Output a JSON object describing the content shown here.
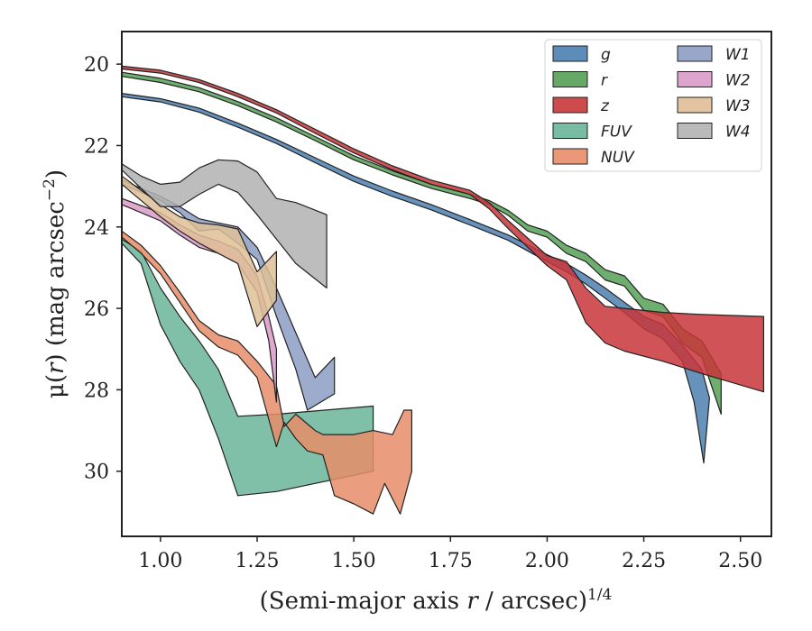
{
  "chart_data": {
    "type": "area",
    "title": "",
    "x_scale": "linear",
    "y_inverted": true,
    "xlim": [
      0.9,
      2.58
    ],
    "ylim": [
      31.6,
      19.2
    ],
    "xticks": [
      1.0,
      1.25,
      1.5,
      1.75,
      2.0,
      2.25,
      2.5
    ],
    "xtick_labels": [
      "1.00",
      "1.25",
      "1.50",
      "1.75",
      "2.00",
      "2.25",
      "2.50"
    ],
    "yticks": [
      20,
      22,
      24,
      26,
      28,
      30
    ],
    "ytick_labels": [
      "20",
      "22",
      "24",
      "26",
      "28",
      "30"
    ],
    "xlabel": {
      "pre": "(Semi-major axis ",
      "var": "r",
      "post": " / arcsec)",
      "sup": "1/4"
    },
    "ylabel": {
      "pre": "μ(",
      "var": "r",
      "post": ") (mag arcsec",
      "sup": "−2",
      "end": ")"
    },
    "legend_position": "top-right",
    "legend_columns": 2,
    "series": [
      {
        "name": "g",
        "color": "#4c7fb0",
        "upper": [
          [
            0.9,
            20.72
          ],
          [
            1.0,
            20.85
          ],
          [
            1.1,
            21.08
          ],
          [
            1.2,
            21.45
          ],
          [
            1.3,
            21.85
          ],
          [
            1.4,
            22.3
          ],
          [
            1.5,
            22.75
          ],
          [
            1.6,
            23.12
          ],
          [
            1.7,
            23.45
          ],
          [
            1.8,
            23.82
          ],
          [
            1.9,
            24.2
          ],
          [
            2.0,
            24.68
          ],
          [
            2.05,
            24.9
          ],
          [
            2.1,
            25.18
          ],
          [
            2.15,
            25.5
          ],
          [
            2.2,
            25.85
          ],
          [
            2.25,
            26.2
          ],
          [
            2.3,
            26.4
          ],
          [
            2.35,
            26.9
          ],
          [
            2.4,
            27.5
          ],
          [
            2.42,
            28.2
          ]
        ],
        "lower": [
          [
            0.9,
            20.8
          ],
          [
            1.0,
            20.93
          ],
          [
            1.1,
            21.18
          ],
          [
            1.2,
            21.55
          ],
          [
            1.3,
            21.95
          ],
          [
            1.4,
            22.42
          ],
          [
            1.5,
            22.88
          ],
          [
            1.6,
            23.25
          ],
          [
            1.7,
            23.58
          ],
          [
            1.8,
            23.95
          ],
          [
            1.9,
            24.33
          ],
          [
            2.0,
            24.85
          ],
          [
            2.05,
            25.1
          ],
          [
            2.1,
            25.4
          ],
          [
            2.15,
            25.75
          ],
          [
            2.2,
            26.1
          ],
          [
            2.25,
            26.5
          ],
          [
            2.3,
            26.75
          ],
          [
            2.35,
            27.3
          ],
          [
            2.38,
            28.3
          ],
          [
            2.405,
            29.8
          ]
        ]
      },
      {
        "name": "r",
        "color": "#55a055",
        "upper": [
          [
            0.9,
            20.2
          ],
          [
            1.0,
            20.35
          ],
          [
            1.1,
            20.58
          ],
          [
            1.2,
            20.92
          ],
          [
            1.3,
            21.32
          ],
          [
            1.4,
            21.78
          ],
          [
            1.5,
            22.25
          ],
          [
            1.6,
            22.62
          ],
          [
            1.7,
            22.95
          ],
          [
            1.8,
            23.2
          ],
          [
            1.85,
            23.35
          ],
          [
            1.9,
            23.6
          ],
          [
            1.95,
            23.95
          ],
          [
            2.0,
            24.1
          ],
          [
            2.05,
            24.45
          ],
          [
            2.1,
            24.65
          ],
          [
            2.15,
            25.05
          ],
          [
            2.2,
            25.2
          ],
          [
            2.25,
            25.75
          ],
          [
            2.3,
            25.9
          ],
          [
            2.35,
            26.5
          ],
          [
            2.4,
            26.8
          ],
          [
            2.45,
            27.6
          ]
        ],
        "lower": [
          [
            0.9,
            20.3
          ],
          [
            1.0,
            20.45
          ],
          [
            1.1,
            20.68
          ],
          [
            1.2,
            21.02
          ],
          [
            1.3,
            21.42
          ],
          [
            1.4,
            21.88
          ],
          [
            1.5,
            22.35
          ],
          [
            1.6,
            22.72
          ],
          [
            1.7,
            23.05
          ],
          [
            1.8,
            23.3
          ],
          [
            1.85,
            23.45
          ],
          [
            1.9,
            23.72
          ],
          [
            1.95,
            24.1
          ],
          [
            2.0,
            24.25
          ],
          [
            2.05,
            24.65
          ],
          [
            2.1,
            24.85
          ],
          [
            2.15,
            25.3
          ],
          [
            2.2,
            25.45
          ],
          [
            2.25,
            26.05
          ],
          [
            2.3,
            26.2
          ],
          [
            2.35,
            26.85
          ],
          [
            2.4,
            27.2
          ],
          [
            2.45,
            28.6
          ]
        ]
      },
      {
        "name": "z",
        "color": "#c8363a",
        "upper": [
          [
            0.9,
            20.05
          ],
          [
            1.0,
            20.15
          ],
          [
            1.1,
            20.38
          ],
          [
            1.2,
            20.72
          ],
          [
            1.3,
            21.12
          ],
          [
            1.4,
            21.6
          ],
          [
            1.5,
            22.08
          ],
          [
            1.6,
            22.5
          ],
          [
            1.7,
            22.85
          ],
          [
            1.8,
            23.1
          ],
          [
            1.85,
            23.4
          ],
          [
            1.9,
            23.85
          ],
          [
            2.0,
            24.7
          ],
          [
            2.05,
            24.85
          ],
          [
            2.1,
            25.5
          ],
          [
            2.15,
            25.95
          ],
          [
            2.2,
            26.0
          ],
          [
            2.3,
            26.1
          ],
          [
            2.4,
            26.15
          ],
          [
            2.56,
            26.2
          ]
        ],
        "lower": [
          [
            0.9,
            20.12
          ],
          [
            1.0,
            20.22
          ],
          [
            1.1,
            20.45
          ],
          [
            1.2,
            20.8
          ],
          [
            1.3,
            21.2
          ],
          [
            1.4,
            21.7
          ],
          [
            1.5,
            22.18
          ],
          [
            1.6,
            22.6
          ],
          [
            1.7,
            22.95
          ],
          [
            1.8,
            23.2
          ],
          [
            1.85,
            23.55
          ],
          [
            1.9,
            24.05
          ],
          [
            2.0,
            24.95
          ],
          [
            2.05,
            25.3
          ],
          [
            2.1,
            26.35
          ],
          [
            2.15,
            26.85
          ],
          [
            2.2,
            27.05
          ],
          [
            2.3,
            27.3
          ],
          [
            2.4,
            27.6
          ],
          [
            2.56,
            28.05
          ]
        ]
      },
      {
        "name": "FUV",
        "color": "#6ab59a",
        "upper": [
          [
            0.9,
            24.3
          ],
          [
            0.95,
            24.6
          ],
          [
            1.0,
            25.5
          ],
          [
            1.05,
            26.2
          ],
          [
            1.1,
            26.8
          ],
          [
            1.15,
            27.5
          ],
          [
            1.2,
            28.65
          ],
          [
            1.3,
            28.6
          ],
          [
            1.55,
            28.4
          ]
        ],
        "lower": [
          [
            0.9,
            24.4
          ],
          [
            0.95,
            24.9
          ],
          [
            1.0,
            26.4
          ],
          [
            1.05,
            27.3
          ],
          [
            1.1,
            28.0
          ],
          [
            1.15,
            29.2
          ],
          [
            1.2,
            30.6
          ],
          [
            1.3,
            30.5
          ],
          [
            1.55,
            30.0
          ]
        ]
      },
      {
        "name": "NUV",
        "color": "#e88d68",
        "upper": [
          [
            0.9,
            24.1
          ],
          [
            0.95,
            24.45
          ],
          [
            1.0,
            24.95
          ],
          [
            1.05,
            25.6
          ],
          [
            1.1,
            26.3
          ],
          [
            1.15,
            26.65
          ],
          [
            1.2,
            26.8
          ],
          [
            1.25,
            27.3
          ],
          [
            1.3,
            27.9
          ],
          [
            1.32,
            28.9
          ],
          [
            1.35,
            28.6
          ],
          [
            1.4,
            29.0
          ],
          [
            1.42,
            29.1
          ],
          [
            1.5,
            29.1
          ],
          [
            1.55,
            29.0
          ],
          [
            1.6,
            29.1
          ],
          [
            1.63,
            28.5
          ],
          [
            1.65,
            28.5
          ]
        ],
        "lower": [
          [
            0.9,
            24.25
          ],
          [
            0.95,
            24.65
          ],
          [
            1.0,
            25.15
          ],
          [
            1.05,
            25.85
          ],
          [
            1.1,
            26.55
          ],
          [
            1.15,
            26.95
          ],
          [
            1.2,
            27.15
          ],
          [
            1.25,
            27.7
          ],
          [
            1.3,
            29.4
          ],
          [
            1.32,
            28.8
          ],
          [
            1.35,
            29.2
          ],
          [
            1.38,
            29.5
          ],
          [
            1.42,
            29.6
          ],
          [
            1.45,
            30.6
          ],
          [
            1.5,
            30.8
          ],
          [
            1.55,
            31.05
          ],
          [
            1.58,
            30.3
          ],
          [
            1.62,
            31.05
          ],
          [
            1.65,
            30.0
          ]
        ]
      },
      {
        "name": "W1",
        "color": "#8c9cc3",
        "upper": [
          [
            0.9,
            22.85
          ],
          [
            1.0,
            23.25
          ],
          [
            1.05,
            23.5
          ],
          [
            1.1,
            23.8
          ],
          [
            1.15,
            23.9
          ],
          [
            1.2,
            24.0
          ],
          [
            1.25,
            24.5
          ],
          [
            1.3,
            25.5
          ],
          [
            1.35,
            26.6
          ],
          [
            1.4,
            27.7
          ],
          [
            1.45,
            27.2
          ]
        ],
        "lower": [
          [
            0.9,
            22.95
          ],
          [
            1.0,
            23.35
          ],
          [
            1.05,
            23.65
          ],
          [
            1.1,
            24.1
          ],
          [
            1.15,
            24.05
          ],
          [
            1.2,
            24.4
          ],
          [
            1.25,
            24.8
          ],
          [
            1.3,
            26.2
          ],
          [
            1.35,
            27.5
          ],
          [
            1.38,
            28.5
          ],
          [
            1.45,
            28.1
          ]
        ]
      },
      {
        "name": "W2",
        "color": "#d99ac8",
        "upper": [
          [
            0.9,
            23.3
          ],
          [
            1.0,
            23.65
          ],
          [
            1.05,
            23.95
          ],
          [
            1.1,
            24.2
          ],
          [
            1.15,
            24.35
          ],
          [
            1.2,
            24.55
          ],
          [
            1.25,
            25.2
          ],
          [
            1.28,
            26.2
          ],
          [
            1.3,
            27.0
          ]
        ],
        "lower": [
          [
            0.9,
            23.45
          ],
          [
            1.0,
            23.85
          ],
          [
            1.05,
            24.2
          ],
          [
            1.1,
            24.5
          ],
          [
            1.15,
            24.65
          ],
          [
            1.2,
            24.9
          ],
          [
            1.25,
            25.6
          ],
          [
            1.28,
            26.8
          ],
          [
            1.3,
            28.3
          ]
        ]
      },
      {
        "name": "W3",
        "color": "#dfbf96",
        "upper": [
          [
            0.9,
            22.75
          ],
          [
            0.95,
            23.1
          ],
          [
            1.0,
            23.45
          ],
          [
            1.05,
            23.75
          ],
          [
            1.1,
            23.9
          ],
          [
            1.15,
            23.95
          ],
          [
            1.2,
            24.05
          ],
          [
            1.25,
            25.1
          ],
          [
            1.3,
            24.6
          ]
        ],
        "lower": [
          [
            0.9,
            22.95
          ],
          [
            0.95,
            23.35
          ],
          [
            1.0,
            23.75
          ],
          [
            1.05,
            24.1
          ],
          [
            1.1,
            24.4
          ],
          [
            1.15,
            24.65
          ],
          [
            1.2,
            24.9
          ],
          [
            1.25,
            26.45
          ],
          [
            1.3,
            25.8
          ]
        ]
      },
      {
        "name": "W4",
        "color": "#b2b2b2",
        "upper": [
          [
            0.9,
            22.45
          ],
          [
            0.95,
            22.75
          ],
          [
            1.0,
            22.95
          ],
          [
            1.05,
            22.9
          ],
          [
            1.1,
            22.55
          ],
          [
            1.15,
            22.35
          ],
          [
            1.2,
            22.38
          ],
          [
            1.25,
            22.65
          ],
          [
            1.3,
            23.3
          ],
          [
            1.35,
            23.4
          ],
          [
            1.43,
            23.7
          ]
        ],
        "lower": [
          [
            0.9,
            22.6
          ],
          [
            0.95,
            23.05
          ],
          [
            1.0,
            23.5
          ],
          [
            1.05,
            23.5
          ],
          [
            1.1,
            23.2
          ],
          [
            1.15,
            22.95
          ],
          [
            1.2,
            23.15
          ],
          [
            1.25,
            23.7
          ],
          [
            1.3,
            24.3
          ],
          [
            1.35,
            24.9
          ],
          [
            1.43,
            25.5
          ]
        ]
      }
    ],
    "legend_order": [
      "g",
      "r",
      "z",
      "FUV",
      "NUV",
      "W1",
      "W2",
      "W3",
      "W4"
    ]
  }
}
